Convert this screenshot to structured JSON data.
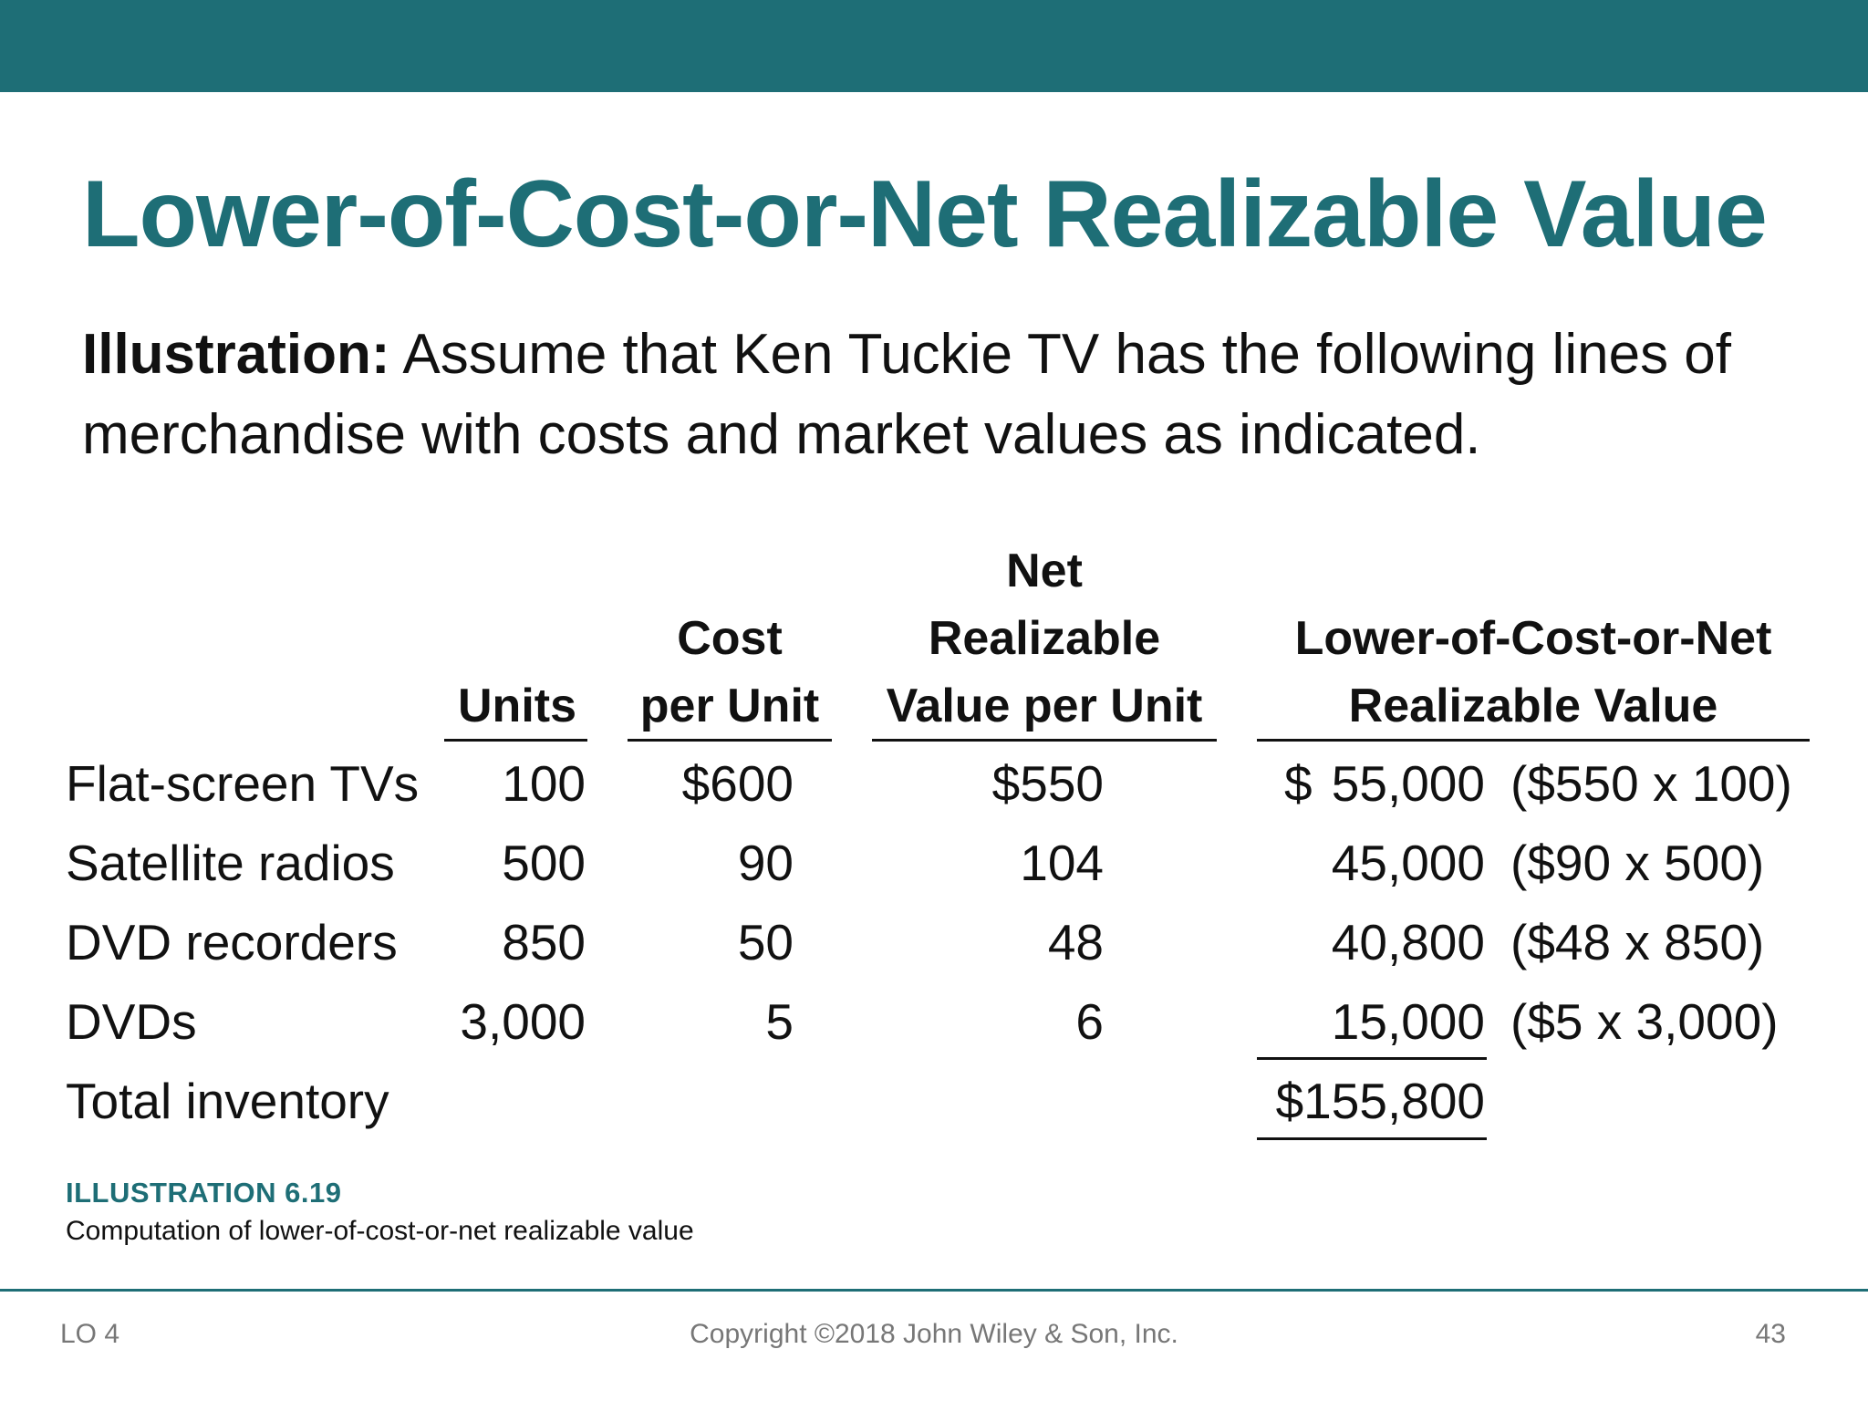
{
  "slide": {
    "title": "Lower-of-Cost-or-Net Realizable Value",
    "intro_bold": "Illustration:",
    "intro_text": " Assume that Ken Tuckie TV has the following lines of merchandise with costs and market values as indicated."
  },
  "table": {
    "headers": {
      "units": "Units",
      "cost_line1": "Cost",
      "cost_line2": "per Unit",
      "nrv_line1": "Net",
      "nrv_line2": "Realizable",
      "nrv_line3": "Value per Unit",
      "lcnrv_line1": "Lower-of-Cost-or-Net",
      "lcnrv_line2": "Realizable Value"
    },
    "rows": [
      {
        "item": "Flat-screen TVs",
        "units": "100",
        "cost": "$600",
        "nrv": "$550",
        "value_dollar": "$",
        "value": "55,000",
        "calc": "($550 x 100)"
      },
      {
        "item": "Satellite radios",
        "units": "500",
        "cost": "90",
        "nrv": "104",
        "value_dollar": "",
        "value": "45,000",
        "calc": "($90 x 500)"
      },
      {
        "item": "DVD recorders",
        "units": "850",
        "cost": "50",
        "nrv": "48",
        "value_dollar": "",
        "value": "40,800",
        "calc": "($48 x 850)"
      },
      {
        "item": "DVDs",
        "units": "3,000",
        "cost": "5",
        "nrv": "6",
        "value_dollar": "",
        "value": "15,000",
        "calc": "($5 x 3,000)"
      }
    ],
    "total_label": "Total inventory",
    "total_value": "$155,800"
  },
  "illustration": {
    "label": "ILLUSTRATION 6.19",
    "caption": "Computation of lower-of-cost-or-net realizable value"
  },
  "footer": {
    "left": "LO 4",
    "center": "Copyright ©2018 John Wiley & Son, Inc.",
    "right": "43"
  },
  "colors": {
    "accent": "#1e6e76",
    "text": "#111111",
    "footer_text": "#777777"
  }
}
